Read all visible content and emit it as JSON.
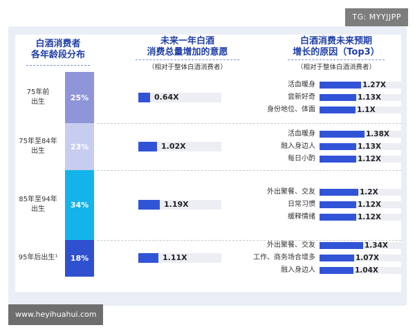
{
  "watermark": "TG: MYYJJPP",
  "footer_site": "www.heyihuahui.com",
  "chart_data": {
    "type": "bar",
    "columns": {
      "age": {
        "title": [
          "白酒消费者",
          "各年龄段分布"
        ]
      },
      "willingness": {
        "title": [
          "未来一年白酒",
          "消费总量增加的意愿"
        ],
        "subtitle": "（相对于整体白酒消费者）"
      },
      "reasons": {
        "title": [
          "白酒消费未来预期",
          "增长的原因（Top3）"
        ],
        "subtitle": "（相对于整体白酒消费者）"
      }
    },
    "rows": [
      {
        "label": [
          "75年前",
          "出生"
        ],
        "share_label": "25%",
        "share": 25,
        "color": "#8e95d8",
        "willingness": 0.64,
        "willingness_label": "0.64X",
        "reasons": [
          {
            "label": "活血暖身",
            "value": 1.27,
            "value_label": "1.27X"
          },
          {
            "label": "尝新好奇",
            "value": 1.13,
            "value_label": "1.13X"
          },
          {
            "label": "身份地位、体面",
            "value": 1.1,
            "value_label": "1.1X"
          }
        ]
      },
      {
        "label": [
          "75年至84年",
          "出生"
        ],
        "share_label": "23%",
        "share": 23,
        "color": "#c6cdee",
        "willingness": 1.02,
        "willingness_label": "1.02X",
        "reasons": [
          {
            "label": "活血暖身",
            "value": 1.38,
            "value_label": "1.38X"
          },
          {
            "label": "融入身边人",
            "value": 1.13,
            "value_label": "1.13X"
          },
          {
            "label": "每日小酌",
            "value": 1.12,
            "value_label": "1.12X"
          }
        ]
      },
      {
        "label": [
          "85年至94年",
          "出生"
        ],
        "share_label": "34%",
        "share": 34,
        "color": "#14b3ea",
        "willingness": 1.19,
        "willingness_label": "1.19X",
        "reasons": [
          {
            "label": "外出聚餐、交友",
            "value": 1.2,
            "value_label": "1.2X"
          },
          {
            "label": "日常习惯",
            "value": 1.12,
            "value_label": "1.12X"
          },
          {
            "label": "缓释情绪",
            "value": 1.12,
            "value_label": "1.12X"
          }
        ]
      },
      {
        "label": [
          "95年后出生¹"
        ],
        "share_label": "18%",
        "share": 18,
        "color": "#2f50cf",
        "willingness": 1.11,
        "willingness_label": "1.11X",
        "reasons": [
          {
            "label": "外出聚餐、交友",
            "value": 1.34,
            "value_label": "1.34X"
          },
          {
            "label": "工作、商务场合增多",
            "value": 1.07,
            "value_label": "1.07X"
          },
          {
            "label": "融入身边人",
            "value": 1.04,
            "value_label": "1.04X"
          }
        ]
      }
    ]
  }
}
